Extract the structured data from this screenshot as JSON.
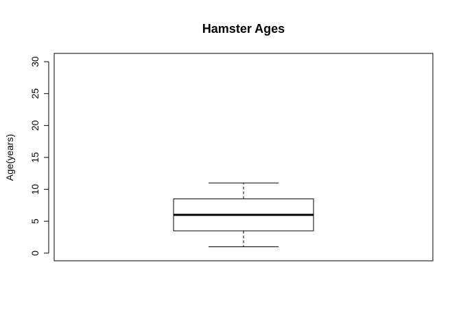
{
  "chart_data": {
    "type": "boxplot",
    "title": "Hamster Ages",
    "xlabel": "",
    "ylabel": "Age(years)",
    "ylim": [
      -1.2,
      31.3
    ],
    "yticks": [
      0,
      5,
      10,
      15,
      20,
      25,
      30
    ],
    "ytick_labels": [
      "0",
      "5",
      "10",
      "15",
      "20",
      "25",
      "30"
    ],
    "grid": false,
    "legend": "none",
    "boxes": [
      {
        "whisker_low": 1,
        "q1": 3.5,
        "median": 6,
        "q3": 8.5,
        "whisker_high": 11
      }
    ],
    "colors": {
      "stroke": "#000000",
      "background": "#ffffff"
    }
  }
}
